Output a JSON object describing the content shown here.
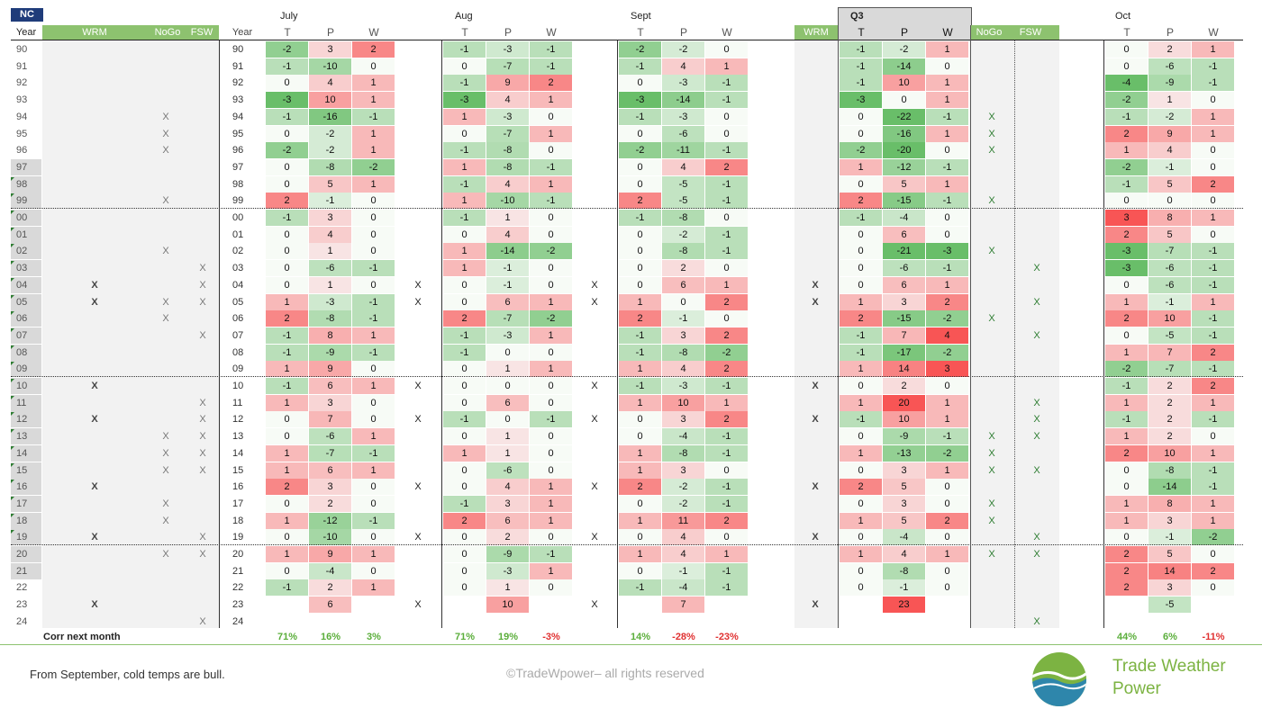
{
  "header": {
    "badge": "NC",
    "year": "Year",
    "wrm": "WRM",
    "nogo": "NoGo",
    "fsw": "FSW",
    "months": [
      "July",
      "Aug",
      "Sept",
      "Q3",
      "Oct"
    ],
    "twp": [
      "T",
      "P",
      "W"
    ]
  },
  "years": [
    "90",
    "91",
    "92",
    "93",
    "94",
    "95",
    "96",
    "97",
    "98",
    "99",
    "00",
    "01",
    "02",
    "03",
    "04",
    "05",
    "06",
    "07",
    "08",
    "09",
    "10",
    "11",
    "12",
    "13",
    "14",
    "15",
    "16",
    "17",
    "18",
    "19",
    "20",
    "21",
    "22",
    "23",
    "24"
  ],
  "highlight_years": [
    "97",
    "98",
    "99",
    "00",
    "01",
    "02",
    "03",
    "04",
    "05",
    "06",
    "07",
    "08",
    "09",
    "10",
    "11",
    "12",
    "13",
    "14",
    "15",
    "16",
    "17",
    "18",
    "19",
    "20",
    "21"
  ],
  "flags_left": {
    "wrm": [
      "04",
      "05",
      "10",
      "12",
      "16",
      "19",
      "23"
    ],
    "nogo": [
      "94",
      "95",
      "96",
      "99",
      "02",
      "05",
      "06",
      "13",
      "14",
      "15",
      "17",
      "18",
      "20"
    ],
    "fsw": [
      "03",
      "04",
      "05",
      "07",
      "11",
      "12",
      "13",
      "14",
      "15",
      "19",
      "20",
      "24"
    ]
  },
  "flags_month_wrm": [
    "04",
    "05",
    "10",
    "12",
    "16",
    "19",
    "23"
  ],
  "flags_q3": {
    "nogo": [
      "94",
      "95",
      "96",
      "99",
      "02",
      "06",
      "13",
      "14",
      "15",
      "17",
      "18",
      "20"
    ],
    "fsw": [
      "03",
      "05",
      "07",
      "11",
      "12",
      "13",
      "15",
      "19",
      "20",
      "24"
    ]
  },
  "months_data": {
    "jul": [
      [
        -2,
        3,
        2
      ],
      [
        -1,
        -10,
        0
      ],
      [
        0,
        4,
        1
      ],
      [
        -3,
        10,
        1
      ],
      [
        -1,
        -16,
        -1
      ],
      [
        0,
        -2,
        1
      ],
      [
        -2,
        -2,
        1
      ],
      [
        0,
        -8,
        -2
      ],
      [
        0,
        5,
        1
      ],
      [
        2,
        -1,
        0
      ],
      [
        -1,
        3,
        0
      ],
      [
        0,
        4,
        0
      ],
      [
        0,
        1,
        0
      ],
      [
        0,
        -6,
        -1
      ],
      [
        0,
        1,
        0
      ],
      [
        1,
        -3,
        -1
      ],
      [
        2,
        -8,
        -1
      ],
      [
        -1,
        8,
        1
      ],
      [
        -1,
        -9,
        -1
      ],
      [
        1,
        9,
        0
      ],
      [
        -1,
        6,
        1
      ],
      [
        1,
        3,
        0
      ],
      [
        0,
        7,
        0
      ],
      [
        0,
        -6,
        1
      ],
      [
        1,
        -7,
        -1
      ],
      [
        1,
        6,
        1
      ],
      [
        2,
        3,
        0
      ],
      [
        0,
        2,
        0
      ],
      [
        1,
        -12,
        -1
      ],
      [
        0,
        -10,
        0
      ],
      [
        1,
        9,
        1
      ],
      [
        0,
        -4,
        0
      ],
      [
        -1,
        2,
        1
      ],
      [
        null,
        6,
        null
      ],
      [
        null,
        null,
        null
      ]
    ],
    "aug": [
      [
        -1,
        -3,
        -1
      ],
      [
        0,
        -7,
        -1
      ],
      [
        -1,
        9,
        2
      ],
      [
        -3,
        4,
        1
      ],
      [
        1,
        -3,
        0
      ],
      [
        0,
        -7,
        1
      ],
      [
        -1,
        -8,
        0
      ],
      [
        1,
        -8,
        -1
      ],
      [
        -1,
        4,
        1
      ],
      [
        1,
        -10,
        -1
      ],
      [
        -1,
        1,
        0
      ],
      [
        0,
        4,
        0
      ],
      [
        1,
        -14,
        -2
      ],
      [
        1,
        -1,
        0
      ],
      [
        0,
        -1,
        0
      ],
      [
        0,
        6,
        1
      ],
      [
        2,
        -7,
        -2
      ],
      [
        -1,
        -3,
        1
      ],
      [
        -1,
        0,
        0
      ],
      [
        0,
        1,
        1
      ],
      [
        0,
        0,
        0
      ],
      [
        0,
        6,
        0
      ],
      [
        -1,
        0,
        -1
      ],
      [
        0,
        1,
        0
      ],
      [
        1,
        1,
        0
      ],
      [
        0,
        -6,
        0
      ],
      [
        0,
        4,
        1
      ],
      [
        -1,
        3,
        1
      ],
      [
        2,
        6,
        1
      ],
      [
        0,
        2,
        0
      ],
      [
        0,
        -9,
        -1
      ],
      [
        0,
        -3,
        1
      ],
      [
        0,
        1,
        0
      ],
      [
        null,
        10,
        null
      ],
      [
        null,
        null,
        null
      ]
    ],
    "sep": [
      [
        -2,
        -2,
        0
      ],
      [
        -1,
        4,
        1
      ],
      [
        0,
        -3,
        -1
      ],
      [
        -3,
        -14,
        -1
      ],
      [
        -1,
        -3,
        0
      ],
      [
        0,
        -6,
        0
      ],
      [
        -2,
        -11,
        -1
      ],
      [
        0,
        4,
        2
      ],
      [
        0,
        -5,
        -1
      ],
      [
        2,
        -5,
        -1
      ],
      [
        -1,
        -8,
        0
      ],
      [
        0,
        -2,
        -1
      ],
      [
        0,
        -8,
        -1
      ],
      [
        0,
        2,
        0
      ],
      [
        0,
        6,
        1
      ],
      [
        1,
        0,
        2
      ],
      [
        2,
        -1,
        0
      ],
      [
        -1,
        3,
        2
      ],
      [
        -1,
        -8,
        -2
      ],
      [
        1,
        4,
        2
      ],
      [
        -1,
        -3,
        -1
      ],
      [
        1,
        10,
        1
      ],
      [
        0,
        3,
        2
      ],
      [
        0,
        -4,
        -1
      ],
      [
        1,
        -8,
        -1
      ],
      [
        1,
        3,
        0
      ],
      [
        2,
        -2,
        -1
      ],
      [
        0,
        -2,
        -1
      ],
      [
        1,
        11,
        2
      ],
      [
        0,
        4,
        0
      ],
      [
        1,
        4,
        1
      ],
      [
        0,
        -1,
        -1
      ],
      [
        -1,
        -4,
        -1
      ],
      [
        null,
        7,
        null
      ],
      [
        null,
        null,
        null
      ]
    ],
    "q3": [
      [
        -1,
        -2,
        1
      ],
      [
        -1,
        -14,
        0
      ],
      [
        -1,
        10,
        1
      ],
      [
        -3,
        0,
        1
      ],
      [
        0,
        -22,
        -1
      ],
      [
        0,
        -16,
        1
      ],
      [
        -2,
        -20,
        0
      ],
      [
        1,
        -12,
        -1
      ],
      [
        0,
        5,
        1
      ],
      [
        2,
        -15,
        -1
      ],
      [
        -1,
        -4,
        0
      ],
      [
        0,
        6,
        0
      ],
      [
        0,
        -21,
        -3
      ],
      [
        0,
        -6,
        -1
      ],
      [
        0,
        6,
        1
      ],
      [
        1,
        3,
        2
      ],
      [
        2,
        -15,
        -2
      ],
      [
        -1,
        7,
        4
      ],
      [
        -1,
        -17,
        -2
      ],
      [
        1,
        14,
        3
      ],
      [
        0,
        2,
        0
      ],
      [
        1,
        20,
        1
      ],
      [
        -1,
        10,
        1
      ],
      [
        0,
        -9,
        -1
      ],
      [
        1,
        -13,
        -2
      ],
      [
        0,
        3,
        1
      ],
      [
        2,
        5,
        0
      ],
      [
        0,
        3,
        0
      ],
      [
        1,
        5,
        2
      ],
      [
        0,
        -4,
        0
      ],
      [
        1,
        4,
        1
      ],
      [
        0,
        -8,
        0
      ],
      [
        0,
        -1,
        0
      ],
      [
        null,
        23,
        null
      ],
      [
        null,
        null,
        null
      ]
    ],
    "oct": [
      [
        0,
        2,
        1
      ],
      [
        0,
        -6,
        -1
      ],
      [
        -4,
        -9,
        -1
      ],
      [
        -2,
        1,
        0
      ],
      [
        -1,
        -2,
        1
      ],
      [
        2,
        9,
        1
      ],
      [
        1,
        4,
        0
      ],
      [
        -2,
        -1,
        0
      ],
      [
        -1,
        5,
        2
      ],
      [
        0,
        0,
        0
      ],
      [
        3,
        8,
        1
      ],
      [
        2,
        5,
        0
      ],
      [
        -3,
        -7,
        -1
      ],
      [
        -3,
        -6,
        -1
      ],
      [
        0,
        -6,
        -1
      ],
      [
        1,
        -1,
        1
      ],
      [
        2,
        10,
        -1
      ],
      [
        0,
        -5,
        -1
      ],
      [
        1,
        7,
        2
      ],
      [
        -2,
        -7,
        -1
      ],
      [
        -1,
        2,
        2
      ],
      [
        1,
        2,
        1
      ],
      [
        -1,
        2,
        -1
      ],
      [
        1,
        2,
        0
      ],
      [
        2,
        10,
        1
      ],
      [
        0,
        -8,
        -1
      ],
      [
        0,
        -14,
        -1
      ],
      [
        1,
        8,
        1
      ],
      [
        1,
        3,
        1
      ],
      [
        0,
        -1,
        -2
      ],
      [
        2,
        5,
        0
      ],
      [
        2,
        14,
        2
      ],
      [
        2,
        3,
        0
      ],
      [
        null,
        -5,
        null
      ],
      [
        null,
        null,
        null
      ]
    ]
  },
  "corr": {
    "label": "Corr next month",
    "jul": [
      "71%",
      "16%",
      "3%"
    ],
    "aug": [
      "71%",
      "19%",
      "-3%"
    ],
    "sep": [
      "14%",
      "-28%",
      "-23%"
    ],
    "oct": [
      "44%",
      "6%",
      "-11%"
    ]
  },
  "footer": {
    "note": "From September, cold temps are bull.",
    "copyright": "©TradeWpower– all rights reserved",
    "brand_line1": "Trade Weather",
    "brand_line2": "Power"
  },
  "colors": {
    "badge_bg": "#1f3c7a",
    "header_green": "#8dc26f",
    "positive_text": "#5aae3a",
    "negative_text": "#e03030",
    "brand_green": "#7cb342",
    "brand_blue": "#2e86ab"
  },
  "x_mark": "X"
}
